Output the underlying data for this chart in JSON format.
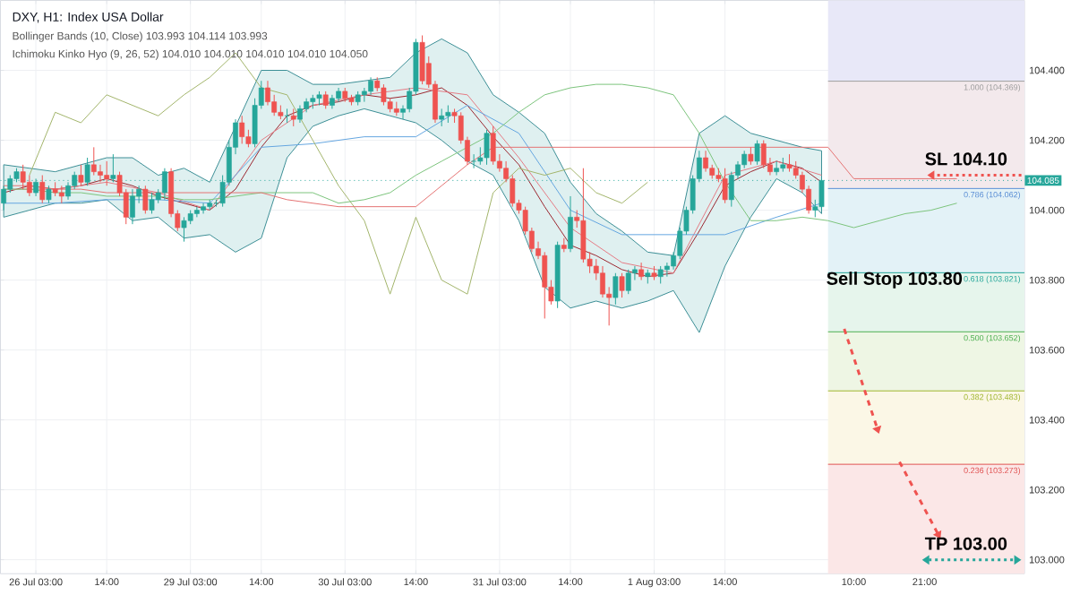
{
  "chart_data": {
    "type": "candlestick",
    "title": "DXY, H1: Index USA Dollar",
    "annotations": [
      "Bollinger Bands (10, Close) 103.993 104.114 103.993",
      "Ichimoku Kinko Hyo (9, 26, 52) 104.010 104.010 104.010 104.010 104.050",
      {
        "text": "SL 104.10",
        "y": 104.1
      },
      {
        "text": "Sell Stop 103.80",
        "y": 103.8
      },
      "TP 103.00"
    ],
    "categories": [
      null,
      null,
      null,
      null,
      null,
      "26 Jul 03:00",
      null,
      null,
      null,
      null,
      null,
      null,
      null,
      null,
      null,
      null,
      "14:00",
      null,
      null,
      null,
      null,
      null,
      null,
      null,
      null,
      null,
      null,
      null,
      null,
      "29 Jul 03:00",
      null,
      null,
      null,
      null,
      null,
      null,
      null,
      null,
      null,
      null,
      "14:00",
      null,
      null,
      null,
      null,
      null,
      null,
      null,
      null,
      null,
      null,
      null,
      null,
      "30 Jul 03:00",
      null,
      null,
      null,
      null,
      null,
      null,
      null,
      null,
      null,
      null,
      "14:00",
      null,
      null,
      null,
      null,
      null,
      null,
      null,
      null,
      null,
      null,
      null,
      null,
      "31 Jul 03:00",
      null,
      null,
      null,
      null,
      null,
      null,
      null,
      null,
      null,
      null,
      "14:00",
      null,
      null,
      null,
      null,
      null,
      null,
      null,
      null,
      null,
      null,
      null,
      null,
      "1 Aug 03:00",
      null,
      null,
      null,
      null,
      null,
      null,
      null,
      null,
      null,
      null,
      "14:00",
      null,
      null,
      null,
      null,
      null,
      null,
      null,
      null,
      null,
      null,
      null,
      null,
      null,
      null,
      null,
      null,
      null,
      null,
      null,
      "10:00",
      null,
      null,
      null,
      null,
      null,
      null,
      null,
      null,
      null,
      null,
      "21:00",
      null,
      null,
      null,
      null,
      null,
      null,
      null,
      null,
      null,
      null,
      null,
      null,
      null,
      null,
      null
    ],
    "ohlc": [
      [
        104.02,
        104.07,
        104.0,
        104.06
      ],
      [
        104.06,
        104.1,
        104.05,
        104.09
      ],
      [
        104.09,
        104.12,
        104.08,
        104.11
      ],
      [
        104.11,
        104.13,
        104.06,
        104.08
      ],
      [
        104.08,
        104.1,
        104.04,
        104.05
      ],
      [
        104.05,
        104.09,
        104.04,
        104.08
      ],
      [
        104.08,
        104.1,
        104.02,
        104.03
      ],
      [
        104.03,
        104.07,
        104.02,
        104.06
      ],
      [
        104.06,
        104.08,
        104.04,
        104.05
      ],
      [
        104.05,
        104.07,
        104.02,
        104.04
      ],
      [
        104.04,
        104.08,
        104.03,
        104.07
      ],
      [
        104.07,
        104.11,
        104.06,
        104.1
      ],
      [
        104.1,
        104.13,
        104.07,
        104.08
      ],
      [
        104.08,
        104.15,
        104.07,
        104.13
      ],
      [
        104.13,
        104.18,
        104.1,
        104.11
      ],
      [
        104.11,
        104.13,
        104.08,
        104.1
      ],
      [
        104.1,
        104.14,
        104.07,
        104.09
      ],
      [
        104.09,
        104.16,
        104.08,
        104.1
      ],
      [
        104.1,
        104.11,
        104.04,
        104.05
      ],
      [
        104.05,
        104.06,
        103.96,
        103.98
      ],
      [
        103.98,
        104.06,
        103.96,
        104.04
      ],
      [
        104.04,
        104.07,
        104.02,
        104.06
      ],
      [
        104.06,
        104.07,
        103.99,
        104.0
      ],
      [
        104.0,
        104.05,
        103.99,
        104.03
      ],
      [
        104.03,
        104.06,
        104.02,
        104.05
      ],
      [
        104.05,
        104.12,
        104.03,
        104.11
      ],
      [
        104.11,
        104.12,
        103.98,
        103.99
      ],
      [
        103.99,
        104.0,
        103.94,
        103.95
      ],
      [
        103.95,
        103.98,
        103.91,
        103.97
      ],
      [
        103.97,
        104.0,
        103.96,
        103.99
      ],
      [
        103.99,
        104.01,
        103.98,
        104.0
      ],
      [
        104.0,
        104.02,
        103.99,
        104.01
      ],
      [
        104.01,
        104.03,
        104.0,
        104.02
      ],
      [
        104.02,
        104.03,
        104.01,
        104.02
      ],
      [
        104.02,
        104.1,
        104.01,
        104.08
      ],
      [
        104.08,
        104.2,
        104.07,
        104.18
      ],
      [
        104.18,
        104.26,
        104.16,
        104.25
      ],
      [
        104.25,
        104.27,
        104.19,
        104.21
      ],
      [
        104.21,
        104.23,
        104.18,
        104.19
      ],
      [
        104.19,
        104.32,
        104.18,
        104.3
      ],
      [
        104.3,
        104.37,
        104.29,
        104.35
      ],
      [
        104.35,
        104.37,
        104.3,
        104.31
      ],
      [
        104.31,
        104.33,
        104.27,
        104.28
      ],
      [
        104.28,
        104.3,
        104.26,
        104.27
      ],
      [
        104.27,
        104.29,
        104.25,
        104.27
      ],
      [
        104.27,
        104.29,
        104.24,
        104.26
      ],
      [
        104.26,
        104.3,
        104.25,
        104.29
      ],
      [
        104.29,
        104.32,
        104.28,
        104.31
      ],
      [
        104.31,
        104.33,
        104.29,
        104.32
      ],
      [
        104.32,
        104.34,
        104.3,
        104.33
      ],
      [
        104.33,
        104.34,
        104.29,
        104.3
      ],
      [
        104.3,
        104.33,
        104.29,
        104.32
      ],
      [
        104.32,
        104.35,
        104.31,
        104.34
      ],
      [
        104.34,
        104.35,
        104.31,
        104.32
      ],
      [
        104.32,
        104.33,
        104.3,
        104.31
      ],
      [
        104.31,
        104.34,
        104.3,
        104.33
      ],
      [
        104.33,
        104.35,
        104.31,
        104.34
      ],
      [
        104.34,
        104.38,
        104.33,
        104.37
      ],
      [
        104.37,
        104.38,
        104.34,
        104.35
      ],
      [
        104.35,
        104.36,
        104.3,
        104.31
      ],
      [
        104.31,
        104.32,
        104.28,
        104.29
      ],
      [
        104.29,
        104.31,
        104.27,
        104.28
      ],
      [
        104.28,
        104.3,
        104.26,
        104.29
      ],
      [
        104.29,
        104.35,
        104.28,
        104.34
      ],
      [
        104.34,
        104.49,
        104.33,
        104.48
      ],
      [
        104.48,
        104.5,
        104.36,
        104.37
      ],
      [
        104.42,
        104.44,
        104.35,
        104.36
      ],
      [
        104.36,
        104.37,
        104.25,
        104.26
      ],
      [
        104.26,
        104.29,
        104.24,
        104.27
      ],
      [
        104.27,
        104.3,
        104.25,
        104.28
      ],
      [
        104.28,
        104.29,
        104.25,
        104.27
      ],
      [
        104.27,
        104.28,
        104.19,
        104.2
      ],
      [
        104.2,
        104.21,
        104.13,
        104.14
      ],
      [
        104.14,
        104.16,
        104.12,
        104.14
      ],
      [
        104.14,
        104.18,
        104.13,
        104.15
      ],
      [
        104.15,
        104.23,
        104.13,
        104.22
      ],
      [
        104.22,
        104.24,
        104.13,
        104.14
      ],
      [
        104.14,
        104.16,
        104.11,
        104.12
      ],
      [
        104.12,
        104.14,
        104.08,
        104.09
      ],
      [
        104.09,
        104.1,
        104.01,
        104.02
      ],
      [
        104.02,
        104.03,
        103.99,
        104.0
      ],
      [
        104.0,
        104.01,
        103.93,
        103.94
      ],
      [
        103.94,
        103.95,
        103.88,
        103.89
      ],
      [
        103.89,
        103.91,
        103.86,
        103.87
      ],
      [
        103.87,
        103.88,
        103.69,
        103.78
      ],
      [
        103.78,
        103.8,
        103.73,
        103.74
      ],
      [
        103.74,
        103.91,
        103.72,
        103.9
      ],
      [
        103.9,
        103.92,
        103.88,
        103.89
      ],
      [
        103.89,
        104.04,
        103.88,
        103.98
      ],
      [
        103.98,
        104.0,
        103.95,
        103.97
      ],
      [
        103.97,
        104.12,
        103.85,
        103.86
      ],
      [
        103.86,
        103.88,
        103.82,
        103.84
      ],
      [
        103.84,
        103.86,
        103.8,
        103.82
      ],
      [
        103.82,
        103.84,
        103.75,
        103.76
      ],
      [
        103.76,
        103.78,
        103.67,
        103.75
      ],
      [
        103.75,
        103.82,
        103.73,
        103.81
      ],
      [
        103.81,
        103.82,
        103.75,
        103.77
      ],
      [
        103.77,
        103.83,
        103.76,
        103.82
      ],
      [
        103.82,
        103.84,
        103.8,
        103.83
      ],
      [
        103.83,
        103.85,
        103.8,
        103.81
      ],
      [
        103.81,
        103.83,
        103.79,
        103.82
      ],
      [
        103.82,
        103.84,
        103.8,
        103.81
      ],
      [
        103.81,
        103.84,
        103.79,
        103.83
      ],
      [
        103.83,
        103.85,
        103.81,
        103.84
      ],
      [
        103.84,
        103.88,
        103.83,
        103.87
      ],
      [
        103.87,
        103.95,
        103.86,
        103.94
      ],
      [
        103.94,
        104.01,
        103.93,
        104.0
      ],
      [
        104.0,
        104.1,
        103.99,
        104.09
      ],
      [
        104.09,
        104.17,
        104.08,
        104.15
      ],
      [
        104.15,
        104.17,
        104.11,
        104.12
      ],
      [
        104.12,
        104.13,
        104.09,
        104.1
      ],
      [
        104.1,
        104.12,
        104.08,
        104.09
      ],
      [
        104.09,
        104.12,
        104.02,
        104.03
      ],
      [
        104.03,
        104.11,
        104.01,
        104.1
      ],
      [
        104.1,
        104.14,
        104.09,
        104.13
      ],
      [
        104.13,
        104.17,
        104.12,
        104.16
      ],
      [
        104.16,
        104.18,
        104.13,
        104.14
      ],
      [
        104.14,
        104.2,
        104.13,
        104.19
      ],
      [
        104.19,
        104.2,
        104.12,
        104.13
      ],
      [
        104.13,
        104.15,
        104.1,
        104.11
      ],
      [
        104.11,
        104.14,
        104.1,
        104.12
      ],
      [
        104.12,
        104.15,
        104.11,
        104.13
      ],
      [
        104.13,
        104.16,
        104.11,
        104.12
      ],
      [
        104.12,
        104.14,
        104.09,
        104.1
      ],
      [
        104.1,
        104.11,
        104.05,
        104.06
      ],
      [
        104.06,
        104.07,
        103.99,
        104.0
      ],
      [
        104.0,
        104.03,
        103.98,
        104.01
      ],
      [
        104.01,
        104.09,
        104.0,
        104.085
      ],
      null,
      null,
      null,
      null,
      null,
      null,
      null,
      null,
      null,
      null,
      null,
      null,
      null,
      null,
      null,
      null,
      null,
      null,
      null,
      null,
      null,
      null,
      null,
      null,
      null,
      null,
      null,
      null,
      null,
      null,
      null
    ],
    "series": [
      {
        "type": "line",
        "color": "#9c2730",
        "values": [
          104.05,
          null,
          null,
          null,
          104.07,
          null,
          null,
          null,
          104.06,
          null,
          null,
          null,
          104.07,
          null,
          null,
          null,
          104.09,
          null,
          null,
          null,
          104.07,
          null,
          null,
          null,
          104.04,
          null,
          null,
          null,
          104.02,
          null,
          null,
          null,
          104.0,
          null,
          null,
          null,
          104.06,
          null,
          null,
          null,
          104.18,
          null,
          null,
          null,
          104.27,
          null,
          null,
          null,
          104.3,
          null,
          null,
          null,
          104.31,
          null,
          null,
          null,
          104.33,
          null,
          null,
          null,
          104.32,
          null,
          null,
          null,
          104.33,
          null,
          null,
          null,
          104.35,
          null,
          null,
          null,
          104.3,
          null,
          null,
          null,
          104.21,
          null,
          null,
          null,
          104.13,
          null,
          null,
          null,
          104.01,
          null,
          null,
          null,
          103.9,
          null,
          null,
          null,
          103.87,
          null,
          null,
          null,
          103.83,
          null,
          null,
          null,
          103.81,
          null,
          null,
          null,
          103.82,
          null,
          null,
          null,
          103.94,
          null,
          null,
          null,
          104.07,
          null,
          null,
          null,
          104.11,
          null,
          null,
          null,
          104.14,
          null,
          null,
          null,
          104.12,
          null,
          null,
          104.08,
          null,
          null,
          null,
          null,
          null,
          null,
          null,
          null,
          null,
          null,
          null,
          null,
          null,
          null,
          null,
          null,
          null,
          null,
          null,
          null,
          null,
          null,
          null,
          null,
          null,
          null,
          null,
          null,
          null,
          null,
          null
        ],
        "lower": [
          103.98,
          null,
          null,
          null,
          104.0,
          null,
          null,
          null,
          104.02,
          null,
          null,
          null,
          104.02,
          null,
          null,
          null,
          104.03,
          null,
          null,
          null,
          103.97,
          null,
          null,
          null,
          103.98,
          null,
          null,
          null,
          103.92,
          null,
          null,
          null,
          103.93,
          null,
          null,
          null,
          103.88,
          null,
          null,
          null,
          103.92,
          null,
          null,
          null,
          104.15,
          null,
          null,
          null,
          104.24,
          null,
          null,
          null,
          104.27,
          null,
          null,
          null,
          104.29,
          null,
          null,
          null,
          104.27,
          null,
          null,
          null,
          104.25,
          null,
          null,
          null,
          104.2,
          null,
          null,
          null,
          104.14,
          null,
          null,
          null,
          104.1,
          null,
          null,
          null,
          103.97,
          null,
          null,
          null,
          103.78,
          null,
          null,
          null,
          103.72,
          null,
          null,
          null,
          103.74,
          null,
          null,
          null,
          103.72,
          null,
          null,
          null,
          103.74,
          null,
          null,
          null,
          103.77,
          null,
          null,
          null,
          103.65,
          null,
          null,
          null,
          103.84,
          null,
          null,
          null,
          103.98,
          null,
          null,
          null,
          104.09,
          null,
          null,
          null,
          104.05,
          null,
          null,
          103.99,
          null,
          null,
          null,
          null,
          null,
          null,
          null,
          null,
          null,
          null,
          null,
          null,
          null,
          null,
          null,
          null,
          null,
          null,
          null,
          null,
          null,
          null,
          null,
          null,
          null,
          null,
          null,
          null,
          null,
          null,
          null
        ],
        "upper": [
          104.13,
          null,
          null,
          null,
          104.12,
          null,
          null,
          null,
          104.11,
          null,
          null,
          null,
          104.13,
          null,
          null,
          null,
          104.15,
          null,
          null,
          null,
          104.15,
          null,
          null,
          null,
          104.1,
          null,
          null,
          null,
          104.12,
          null,
          null,
          null,
          104.08,
          null,
          null,
          null,
          104.24,
          null,
          null,
          null,
          104.4,
          null,
          null,
          null,
          104.4,
          null,
          null,
          null,
          104.36,
          null,
          null,
          null,
          104.36,
          null,
          null,
          null,
          104.37,
          null,
          null,
          null,
          104.38,
          null,
          null,
          null,
          104.45,
          null,
          null,
          null,
          104.49,
          null,
          null,
          null,
          104.45,
          null,
          null,
          null,
          104.33,
          null,
          null,
          null,
          104.28,
          null,
          null,
          null,
          104.22,
          null,
          null,
          null,
          104.08,
          null,
          null,
          null,
          103.99,
          null,
          null,
          null,
          103.94,
          null,
          null,
          null,
          103.88,
          null,
          null,
          null,
          103.87,
          null,
          null,
          null,
          104.22,
          null,
          null,
          null,
          104.27,
          null,
          null,
          null,
          104.22,
          null,
          null,
          null,
          104.2,
          null,
          null,
          null,
          104.18,
          null,
          null,
          104.17,
          null,
          null,
          null,
          null,
          null,
          null,
          null,
          null,
          null,
          null,
          null,
          null,
          null,
          null,
          null,
          null,
          null,
          null,
          null,
          null,
          null,
          null,
          null,
          null,
          null,
          null,
          null,
          null,
          null,
          null,
          null
        ]
      },
      {
        "type": "line",
        "color": "#e57b85",
        "values": [
          104.06,
          null,
          null,
          null,
          null,
          null,
          null,
          null,
          104.06,
          null,
          null,
          null,
          null,
          null,
          null,
          null,
          104.08,
          null,
          null,
          null,
          null,
          null,
          null,
          null,
          104.05,
          null,
          null,
          null,
          null,
          null,
          null,
          null,
          104.0,
          null,
          null,
          null,
          null,
          null,
          null,
          null,
          104.2,
          null,
          null,
          null,
          null,
          null,
          null,
          null,
          104.3,
          null,
          null,
          null,
          null,
          null,
          null,
          null,
          104.33,
          null,
          null,
          null,
          null,
          null,
          null,
          null,
          104.35,
          null,
          null,
          null,
          null,
          null,
          null,
          null,
          104.33,
          null,
          null,
          null,
          null,
          null,
          null,
          null,
          104.15,
          null,
          null,
          null,
          null,
          null,
          null,
          null,
          103.95,
          null,
          null,
          null,
          null,
          null,
          null,
          null,
          103.85,
          null,
          null,
          null,
          null,
          null,
          null,
          null,
          103.82,
          null,
          null,
          null,
          null,
          null,
          null,
          null,
          104.1,
          null,
          null,
          null,
          null,
          null,
          null,
          null,
          104.14,
          null,
          null,
          null,
          null,
          null,
          null,
          104.1,
          null,
          null,
          null,
          null,
          null,
          null,
          null,
          null,
          null,
          null,
          null,
          null,
          null,
          null,
          null,
          null,
          null,
          null,
          null,
          null,
          null,
          null,
          null,
          null,
          null,
          null,
          null,
          null,
          null,
          null,
          null
        ]
      },
      {
        "type": "line",
        "color": "#64a6e0",
        "values": [
          104.02,
          null,
          null,
          null,
          null,
          null,
          null,
          null,
          104.02,
          null,
          null,
          null,
          null,
          null,
          null,
          null,
          104.03,
          null,
          null,
          null,
          null,
          null,
          null,
          null,
          104.03,
          null,
          null,
          null,
          null,
          null,
          null,
          null,
          104.02,
          null,
          null,
          null,
          null,
          null,
          null,
          null,
          104.18,
          null,
          null,
          null,
          null,
          null,
          null,
          null,
          104.19,
          null,
          null,
          null,
          null,
          null,
          null,
          null,
          104.21,
          null,
          null,
          null,
          null,
          null,
          null,
          null,
          104.21,
          null,
          null,
          null,
          null,
          null,
          null,
          null,
          104.3,
          null,
          null,
          null,
          null,
          null,
          null,
          null,
          104.22,
          null,
          null,
          null,
          null,
          null,
          null,
          null,
          104.0,
          null,
          null,
          null,
          null,
          null,
          null,
          null,
          103.93,
          null,
          null,
          null,
          null,
          null,
          null,
          null,
          103.93,
          null,
          null,
          null,
          null,
          null,
          null,
          null,
          103.93,
          null,
          null,
          null,
          null,
          null,
          null,
          null,
          103.98,
          null,
          null,
          null,
          null,
          null,
          null,
          104.02,
          null,
          null,
          null,
          null,
          null,
          null,
          null,
          null,
          null,
          null,
          null,
          null,
          null,
          null,
          null,
          null,
          null,
          null,
          null,
          null,
          null,
          null,
          null,
          null,
          null,
          null,
          null,
          null,
          null,
          null,
          null
        ]
      },
      {
        "type": "line",
        "color": "#a3b56b",
        "values": [
          null,
          null,
          null,
          null,
          104.1,
          null,
          null,
          null,
          104.28,
          null,
          null,
          null,
          104.25,
          null,
          null,
          null,
          104.33,
          null,
          null,
          null,
          104.3,
          null,
          null,
          null,
          104.27,
          null,
          null,
          null,
          104.33,
          null,
          null,
          null,
          104.38,
          null,
          null,
          null,
          104.45,
          null,
          null,
          null,
          104.35,
          null,
          null,
          null,
          104.33,
          null,
          null,
          null,
          104.2,
          null,
          null,
          null,
          104.07,
          null,
          null,
          null,
          103.97,
          null,
          null,
          null,
          103.76,
          null,
          null,
          null,
          103.98,
          null,
          null,
          null,
          103.8,
          null,
          null,
          null,
          103.76,
          null,
          null,
          null,
          104.05,
          null,
          null,
          null,
          104.12,
          null,
          null,
          null,
          104.1,
          null,
          null,
          null,
          104.12,
          null,
          null,
          null,
          104.05,
          null,
          null,
          null,
          104.02,
          null,
          null,
          null,
          104.08,
          null,
          null,
          null,
          null,
          null,
          null,
          null,
          null,
          null,
          null,
          null,
          null,
          null,
          null,
          null,
          null,
          null,
          null,
          null,
          null,
          null,
          null,
          null,
          null,
          null,
          null,
          null,
          null,
          null,
          null,
          null,
          null,
          null,
          null,
          null,
          null,
          null,
          null,
          null,
          null,
          null,
          null,
          null,
          null,
          null,
          null,
          null,
          null,
          null,
          null,
          null,
          null,
          null,
          null,
          null,
          null,
          null,
          null
        ]
      },
      {
        "type": "line",
        "color": "#7cc47c",
        "values": [
          104.06,
          null,
          null,
          null,
          104.06,
          null,
          null,
          null,
          104.05,
          null,
          null,
          null,
          104.05,
          null,
          null,
          null,
          104.04,
          null,
          null,
          null,
          104.04,
          null,
          null,
          null,
          104.04,
          null,
          null,
          null,
          104.03,
          null,
          null,
          null,
          104.03,
          null,
          null,
          null,
          104.04,
          null,
          null,
          null,
          104.05,
          null,
          null,
          null,
          104.05,
          null,
          null,
          null,
          104.05,
          null,
          null,
          null,
          104.02,
          null,
          null,
          null,
          104.03,
          null,
          null,
          null,
          104.05,
          null,
          null,
          null,
          104.1,
          null,
          null,
          null,
          104.14,
          null,
          null,
          null,
          104.18,
          null,
          null,
          null,
          104.22,
          null,
          null,
          null,
          104.28,
          null,
          null,
          null,
          104.33,
          null,
          null,
          null,
          104.35,
          null,
          null,
          null,
          104.36,
          null,
          null,
          null,
          104.36,
          null,
          null,
          null,
          104.35,
          null,
          null,
          null,
          104.33,
          null,
          null,
          null,
          104.22,
          null,
          null,
          null,
          104.08,
          null,
          null,
          null,
          103.97,
          null,
          null,
          null,
          103.97,
          null,
          null,
          null,
          103.98,
          null,
          null,
          null,
          103.97,
          null,
          null,
          null,
          103.95,
          null,
          null,
          null,
          103.97,
          null,
          null,
          null,
          103.99,
          null,
          null,
          null,
          104.0,
          null,
          null,
          null,
          104.02,
          null,
          null,
          null,
          null,
          null,
          null,
          null,
          null,
          null,
          null
        ]
      },
      {
        "type": "line",
        "color": "#e57373",
        "values": [
          104.07,
          null,
          null,
          null,
          104.07,
          null,
          null,
          null,
          104.06,
          null,
          null,
          null,
          104.06,
          null,
          null,
          null,
          104.05,
          null,
          null,
          null,
          104.05,
          null,
          null,
          null,
          104.05,
          null,
          null,
          null,
          104.05,
          null,
          null,
          null,
          104.05,
          null,
          null,
          null,
          104.05,
          null,
          null,
          null,
          104.05,
          null,
          null,
          null,
          104.03,
          null,
          null,
          null,
          104.02,
          null,
          null,
          null,
          104.01,
          null,
          null,
          null,
          104.01,
          null,
          null,
          null,
          104.01,
          null,
          null,
          null,
          104.01,
          null,
          null,
          null,
          104.07,
          null,
          null,
          null,
          104.13,
          null,
          null,
          null,
          104.18,
          null,
          null,
          null,
          104.18,
          null,
          null,
          null,
          104.18,
          null,
          null,
          null,
          104.18,
          null,
          null,
          null,
          104.18,
          null,
          null,
          null,
          104.18,
          null,
          null,
          null,
          104.18,
          null,
          null,
          null,
          104.18,
          null,
          null,
          null,
          104.18,
          null,
          null,
          null,
          104.18,
          null,
          null,
          null,
          104.18,
          null,
          null,
          null,
          104.18,
          null,
          null,
          null,
          104.18,
          null,
          null,
          null,
          104.18,
          null,
          null,
          null,
          104.09,
          null,
          null,
          null,
          104.09,
          null,
          null,
          null,
          104.09,
          null,
          null,
          null,
          104.09,
          null,
          null,
          null,
          104.09,
          null,
          null,
          null,
          null,
          null,
          null,
          null,
          null,
          null,
          null
        ]
      }
    ],
    "ylim": [
      102.96,
      104.6
    ],
    "yticks": [
      {
        "value": 103.0,
        "label": "103.000"
      },
      {
        "value": 103.2,
        "label": "103.200"
      },
      {
        "value": 103.4,
        "label": "103.400"
      },
      {
        "value": 103.6,
        "label": "103.600"
      },
      {
        "value": 103.8,
        "label": "103.800"
      },
      {
        "value": 104.0,
        "label": "104.000"
      },
      {
        "value": 104.2,
        "label": "104.200"
      },
      {
        "value": 104.4,
        "label": "104.400"
      }
    ],
    "ref_lines": [
      {
        "axis": "y",
        "value": 104.369,
        "label": "1.000 (104.369)",
        "color": "#9e9e9e"
      },
      {
        "axis": "y",
        "value": 104.062,
        "label": "0.786 (104.062)",
        "color": "#5b8fd5"
      },
      {
        "axis": "y",
        "value": 103.821,
        "label": "0.618 (103.821)",
        "color": "#26a69a"
      },
      {
        "axis": "y",
        "value": 103.652,
        "label": "0.500 (103.652)",
        "color": "#4caf50"
      },
      {
        "axis": "y",
        "value": 103.483,
        "label": "0.382 (103.483)",
        "color": "#9fb52d"
      },
      {
        "axis": "y",
        "value": 103.273,
        "label": "0.236 (103.273)",
        "color": "#e05050"
      },
      {
        "axis": "y",
        "value": 104.085,
        "label": "104.085",
        "color": "#26a69a",
        "line_style": "dotted"
      }
    ],
    "bands": [
      {
        "axis": "y",
        "from": 104.369,
        "to": 104.6,
        "color": "#e8e8f8"
      },
      {
        "axis": "y",
        "from": 104.062,
        "to": 104.369,
        "color": "#f3e9ec"
      },
      {
        "axis": "y",
        "from": 103.821,
        "to": 104.062,
        "color": "#e3f2f7"
      },
      {
        "axis": "y",
        "from": 103.652,
        "to": 103.821,
        "color": "#e6f5ec"
      },
      {
        "axis": "y",
        "from": 103.483,
        "to": 103.652,
        "color": "#eef6e4"
      },
      {
        "axis": "y",
        "from": 103.273,
        "to": 103.483,
        "color": "#fbf7e6"
      },
      {
        "axis": "y",
        "from": 102.96,
        "to": 103.273,
        "color": "#fbe7e7"
      }
    ],
    "grid": true
  }
}
